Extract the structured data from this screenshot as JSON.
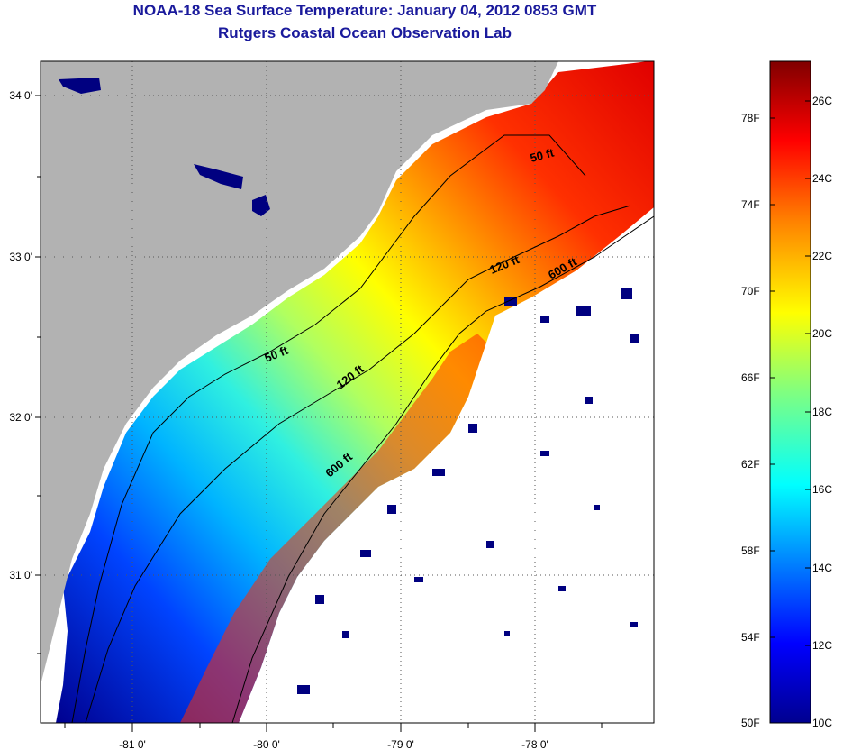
{
  "header": {
    "title": "NOAA-18 Sea Surface Temperature:  January 04, 2012 0853 GMT",
    "subtitle": "Rutgers Coastal Ocean Observation Lab"
  },
  "map": {
    "x_ticks": [
      "-81 0'",
      "-80 0'",
      "-79 0'",
      "-78 0'"
    ],
    "y_ticks": [
      "34 0'",
      "33 0'",
      "32 0'",
      "31 0'"
    ],
    "contours": [
      {
        "label": "50 ft",
        "depth_ft": 50
      },
      {
        "label": "120 ft",
        "depth_ft": 120
      },
      {
        "label": "600 ft",
        "depth_ft": 600
      }
    ],
    "colors": {
      "land": "#b2b2b2",
      "no_data": "#ffffff",
      "cloud": "#000080"
    }
  },
  "colorbar": {
    "fahrenheit_labels": [
      "78F",
      "74F",
      "70F",
      "66F",
      "62F",
      "58F",
      "54F",
      "50F"
    ],
    "celsius_labels": [
      "26C",
      "24C",
      "22C",
      "20C",
      "18C",
      "16C",
      "14C",
      "12C",
      "10C"
    ],
    "gradient": [
      "#00008f",
      "#0000ff",
      "#0080ff",
      "#00ffff",
      "#80ff80",
      "#ffff00",
      "#ff8000",
      "#ff0000",
      "#800000"
    ]
  }
}
